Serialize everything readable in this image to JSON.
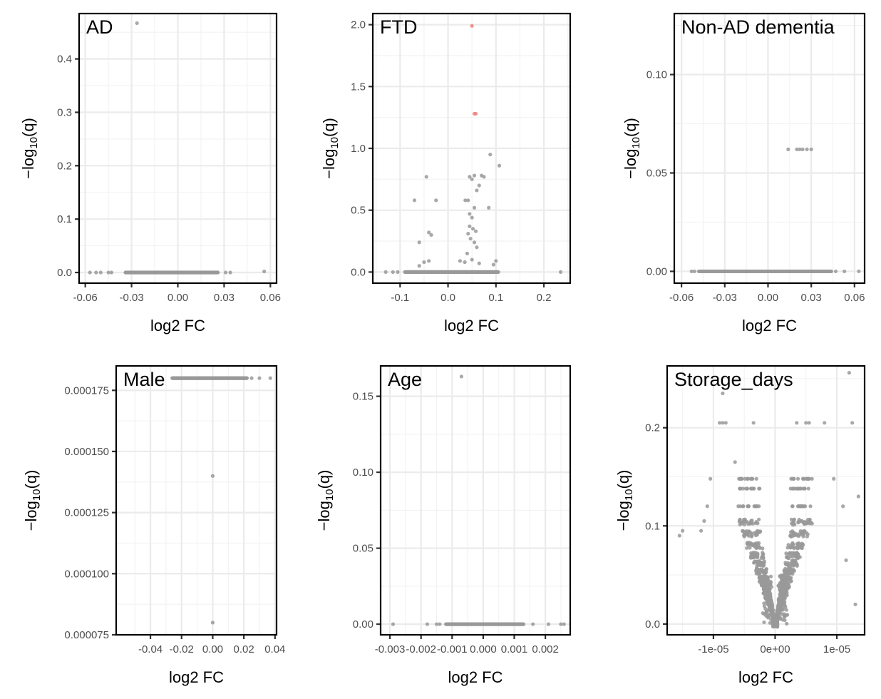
{
  "colors": {
    "point": "#999999",
    "highlight": "#f08080",
    "grid": "#ebebeb",
    "frame": "#000000"
  },
  "chart_data": [
    {
      "type": "scatter",
      "title": "AD",
      "xlabel": "log2 FC",
      "ylabel": "−log10(q)",
      "xlim": [
        -0.064,
        0.064
      ],
      "ylim": [
        -0.02,
        0.485
      ],
      "xticks": [
        -0.06,
        -0.03,
        0.0,
        0.03,
        0.06
      ],
      "xtick_labels": [
        "-0.06",
        "-0.03",
        "0.00",
        "0.03",
        "0.06"
      ],
      "yticks": [
        0.0,
        0.1,
        0.2,
        0.3,
        0.4
      ],
      "ytick_labels": [
        "0.0",
        "0.1",
        "0.2",
        "0.3",
        "0.4"
      ],
      "points": [
        {
          "x": -0.0265,
          "y": 0.467
        },
        {
          "x": 0.056,
          "y": 0.002
        }
      ],
      "baseline_band": {
        "x_range": [
          -0.034,
          0.026
        ],
        "extra_x": [
          -0.057,
          -0.053,
          -0.05,
          -0.045,
          -0.043,
          0.031,
          0.034
        ],
        "y": 0.0
      }
    },
    {
      "type": "scatter",
      "title": "FTD",
      "xlabel": "log2 FC",
      "ylabel": "−log10(q)",
      "xlim": [
        -0.157,
        0.255
      ],
      "ylim": [
        -0.09,
        2.09
      ],
      "xticks": [
        -0.1,
        0.0,
        0.1,
        0.2
      ],
      "xtick_labels": [
        "-0.1",
        "0.0",
        "0.1",
        "0.2"
      ],
      "yticks": [
        0.0,
        0.5,
        1.0,
        1.5,
        2.0
      ],
      "ytick_labels": [
        "0.0",
        "0.5",
        "1.0",
        "1.5",
        "2.0"
      ],
      "highlighted_points": [
        {
          "x": 0.05,
          "y": 1.99
        },
        {
          "x": 0.055,
          "y": 1.28
        },
        {
          "x": 0.058,
          "y": 1.28
        }
      ],
      "points": [
        {
          "x": -0.045,
          "y": 0.77
        },
        {
          "x": -0.07,
          "y": 0.58
        },
        {
          "x": -0.025,
          "y": 0.58
        },
        {
          "x": -0.04,
          "y": 0.32
        },
        {
          "x": -0.035,
          "y": 0.3
        },
        {
          "x": -0.06,
          "y": 0.24
        },
        {
          "x": -0.05,
          "y": 0.08
        },
        {
          "x": -0.04,
          "y": 0.09
        },
        {
          "x": -0.06,
          "y": 0.05
        },
        {
          "x": 0.045,
          "y": 0.77
        },
        {
          "x": 0.05,
          "y": 0.75
        },
        {
          "x": 0.055,
          "y": 0.78
        },
        {
          "x": 0.07,
          "y": 0.78
        },
        {
          "x": 0.075,
          "y": 0.77
        },
        {
          "x": 0.065,
          "y": 0.7
        },
        {
          "x": 0.06,
          "y": 0.66
        },
        {
          "x": 0.088,
          "y": 0.95
        },
        {
          "x": 0.107,
          "y": 0.86
        },
        {
          "x": 0.042,
          "y": 0.58
        },
        {
          "x": 0.036,
          "y": 0.58
        },
        {
          "x": 0.055,
          "y": 0.52
        },
        {
          "x": 0.085,
          "y": 0.52
        },
        {
          "x": 0.045,
          "y": 0.47
        },
        {
          "x": 0.05,
          "y": 0.44
        },
        {
          "x": 0.045,
          "y": 0.37
        },
        {
          "x": 0.052,
          "y": 0.35
        },
        {
          "x": 0.058,
          "y": 0.33
        },
        {
          "x": 0.042,
          "y": 0.31
        },
        {
          "x": 0.047,
          "y": 0.27
        },
        {
          "x": 0.055,
          "y": 0.24
        },
        {
          "x": 0.06,
          "y": 0.2
        },
        {
          "x": 0.04,
          "y": 0.15
        },
        {
          "x": 0.05,
          "y": 0.1
        },
        {
          "x": 0.025,
          "y": 0.09
        },
        {
          "x": 0.065,
          "y": 0.07
        },
        {
          "x": 0.1,
          "y": 0.09
        },
        {
          "x": 0.035,
          "y": 0.08
        },
        {
          "x": 0.095,
          "y": 0.06
        },
        {
          "x": 0.235,
          "y": 0.0
        },
        {
          "x": -0.13,
          "y": 0.0
        },
        {
          "x": -0.115,
          "y": 0.0
        },
        {
          "x": -0.105,
          "y": 0.0
        }
      ],
      "baseline_band": {
        "x_range": [
          -0.09,
          0.105
        ],
        "extra_x": [],
        "y": 0.0
      }
    },
    {
      "type": "scatter",
      "title": "Non-AD dementia",
      "xlabel": "log2 FC",
      "ylabel": "−log10(q)",
      "xlim": [
        -0.065,
        0.067
      ],
      "ylim": [
        -0.006,
        0.131
      ],
      "xticks": [
        -0.06,
        -0.03,
        0.0,
        0.03,
        0.06
      ],
      "xtick_labels": [
        "-0.06",
        "-0.03",
        "0.00",
        "0.03",
        "0.06"
      ],
      "yticks": [
        0.0,
        0.05,
        0.1
      ],
      "ytick_labels": [
        "0.00",
        "0.05",
        "0.10"
      ],
      "points": [
        {
          "x": 0.014,
          "y": 0.062
        },
        {
          "x": 0.02,
          "y": 0.062
        },
        {
          "x": 0.022,
          "y": 0.062
        },
        {
          "x": 0.024,
          "y": 0.062
        },
        {
          "x": 0.027,
          "y": 0.062
        },
        {
          "x": 0.03,
          "y": 0.062
        },
        {
          "x": 0.063,
          "y": 0.0
        }
      ],
      "baseline_band": {
        "x_range": [
          -0.048,
          0.044
        ],
        "extra_x": [
          -0.053,
          -0.051,
          0.047,
          0.053
        ],
        "y": 0.0
      }
    },
    {
      "type": "scatter",
      "title": "Male",
      "xlabel": "log2 FC",
      "ylabel": "−log10(q)",
      "xlim": [
        -0.062,
        0.041
      ],
      "ylim": [
        7.5e-05,
        0.000185
      ],
      "xticks": [
        -0.04,
        -0.02,
        0.0,
        0.02,
        0.04
      ],
      "xtick_labels": [
        "-0.04",
        "-0.02",
        "0.00",
        "0.02",
        "0.04"
      ],
      "yticks": [
        7.5e-05,
        0.0001,
        0.000125,
        0.00015,
        0.000175
      ],
      "ytick_labels": [
        "0.000075",
        "0.000100",
        "0.000125",
        "0.000150",
        "0.000175"
      ],
      "points": [
        {
          "x": 0.0,
          "y": 0.00014
        },
        {
          "x": 0.0,
          "y": 8e-05
        },
        {
          "x": 0.03,
          "y": 0.00018
        },
        {
          "x": 0.037,
          "y": 0.00018
        },
        {
          "x": 0.025,
          "y": 0.00018
        }
      ],
      "baseline_band": {
        "x_range": [
          -0.026,
          0.022
        ],
        "extra_x": [],
        "y": 0.00018
      }
    },
    {
      "type": "scatter",
      "title": "Age",
      "xlabel": "log2 FC",
      "ylabel": "−log10(q)",
      "xlim": [
        -0.0033,
        0.0028
      ],
      "ylim": [
        -0.007,
        0.17
      ],
      "xticks": [
        -0.003,
        -0.002,
        -0.001,
        0.0,
        0.001,
        0.002
      ],
      "xtick_labels": [
        "-0.003",
        "-0.002",
        "-0.001",
        "0.000",
        "0.001",
        "0.002"
      ],
      "yticks": [
        0.0,
        0.05,
        0.1,
        0.15
      ],
      "ytick_labels": [
        "0.00",
        "0.05",
        "0.10",
        "0.15"
      ],
      "points": [
        {
          "x": -0.0007,
          "y": 0.163
        },
        {
          "x": -0.0029,
          "y": 0.0
        },
        {
          "x": 0.0016,
          "y": 0.0
        },
        {
          "x": 0.0021,
          "y": 0.0
        },
        {
          "x": 0.0025,
          "y": 0.0
        },
        {
          "x": 0.0026,
          "y": 0.0
        }
      ],
      "baseline_band": {
        "x_range": [
          -0.0012,
          0.0013
        ],
        "extra_x": [
          -0.0018,
          -0.0015,
          -0.0014
        ],
        "y": 0.0
      }
    },
    {
      "type": "scatter",
      "title": "Storage_days",
      "xlabel": "log2 FC",
      "ylabel": "−log10(q)",
      "xlim": [
        -1.75e-05,
        1.45e-05
      ],
      "ylim": [
        -0.011,
        0.263
      ],
      "xticks": [
        -1e-05,
        0.0,
        1e-05
      ],
      "xtick_labels": [
        "-1e-05",
        "0e+00",
        "1e-05"
      ],
      "yticks": [
        0.0,
        0.1,
        0.2
      ],
      "ytick_labels": [
        "0.0",
        "0.1",
        "0.2"
      ],
      "points": [
        {
          "x": 1.2e-05,
          "y": 0.256
        },
        {
          "x": -8.5e-06,
          "y": 0.235
        },
        {
          "x": 1.25e-05,
          "y": 0.205
        },
        {
          "x": -9e-06,
          "y": 0.205
        },
        {
          "x": -8.5e-06,
          "y": 0.205
        },
        {
          "x": -8e-06,
          "y": 0.205
        },
        {
          "x": -3.5e-06,
          "y": 0.205
        },
        {
          "x": 3.5e-06,
          "y": 0.205
        },
        {
          "x": 5e-06,
          "y": 0.205
        },
        {
          "x": 5.5e-06,
          "y": 0.205
        },
        {
          "x": 8e-06,
          "y": 0.205
        },
        {
          "x": -1.55e-05,
          "y": 0.09
        },
        {
          "x": -1.5e-05,
          "y": 0.095
        },
        {
          "x": -1.2e-05,
          "y": 0.095
        },
        {
          "x": -1.15e-05,
          "y": 0.105
        },
        {
          "x": -1.05e-05,
          "y": 0.148
        },
        {
          "x": -1.1e-05,
          "y": 0.12
        },
        {
          "x": 1.35e-05,
          "y": 0.13
        },
        {
          "x": 1.15e-05,
          "y": 0.065
        },
        {
          "x": 1.3e-05,
          "y": 0.02
        },
        {
          "x": 1.1e-05,
          "y": 0.12
        },
        {
          "x": 9.5e-06,
          "y": 0.148
        },
        {
          "x": -6.5e-06,
          "y": 0.165
        }
      ],
      "cloud": {
        "shape": "V",
        "x_range": [
          -1e-05,
          1e-05
        ],
        "y_max": 0.148
      }
    }
  ]
}
